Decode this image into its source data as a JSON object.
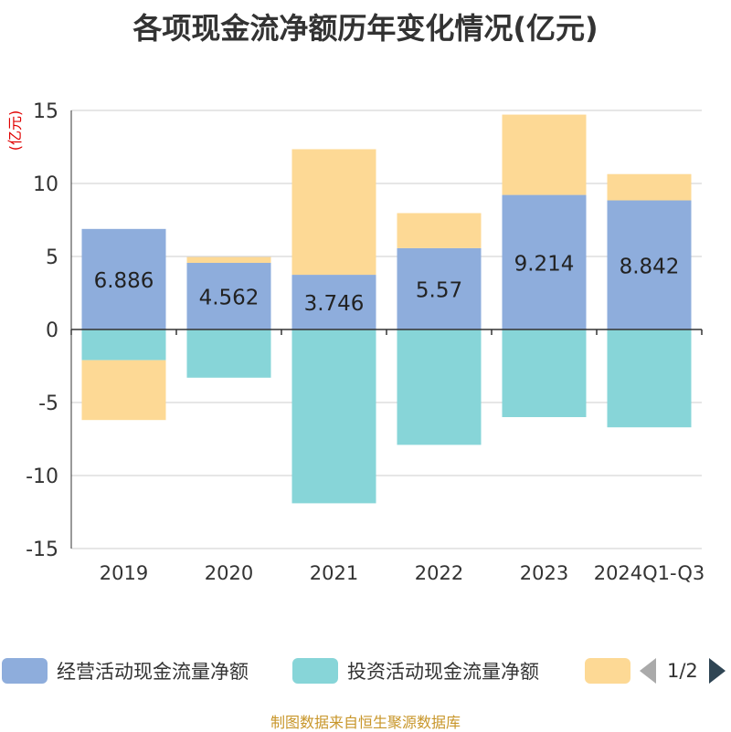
{
  "source": "制图数据来自恒生聚源数据库",
  "pager": {
    "text": "1/2"
  },
  "colors": {
    "operating": "#8eaddc",
    "investing": "#87d5d8",
    "financing": "#fdd995",
    "unit": "#e00000"
  },
  "chart_data": {
    "type": "bar",
    "stacked": true,
    "title": "各项现金流净额历年变化情况(亿元)",
    "ylabel": "(亿元)",
    "ylim": [
      -15,
      15
    ],
    "yticks": [
      15,
      10,
      5,
      0,
      -5,
      -10,
      -15
    ],
    "grid": true,
    "legend": "bottom",
    "categories": [
      "2019",
      "2020",
      "2021",
      "2022",
      "2023",
      "2024Q1-Q3"
    ],
    "series": [
      {
        "name": "经营活动现金流量净额",
        "values": [
          6.886,
          4.562,
          3.746,
          5.57,
          9.214,
          8.842
        ],
        "labels": [
          "6.886",
          "4.562",
          "3.746",
          "5.57",
          "9.214",
          "8.842"
        ]
      },
      {
        "name": "投资活动现金流量净额",
        "values": [
          -2.1,
          -3.3,
          -11.9,
          -7.9,
          -6.0,
          -6.7
        ]
      },
      {
        "name": "",
        "values": [
          -4.1,
          0.4,
          8.6,
          2.4,
          5.5,
          1.8
        ]
      }
    ]
  }
}
